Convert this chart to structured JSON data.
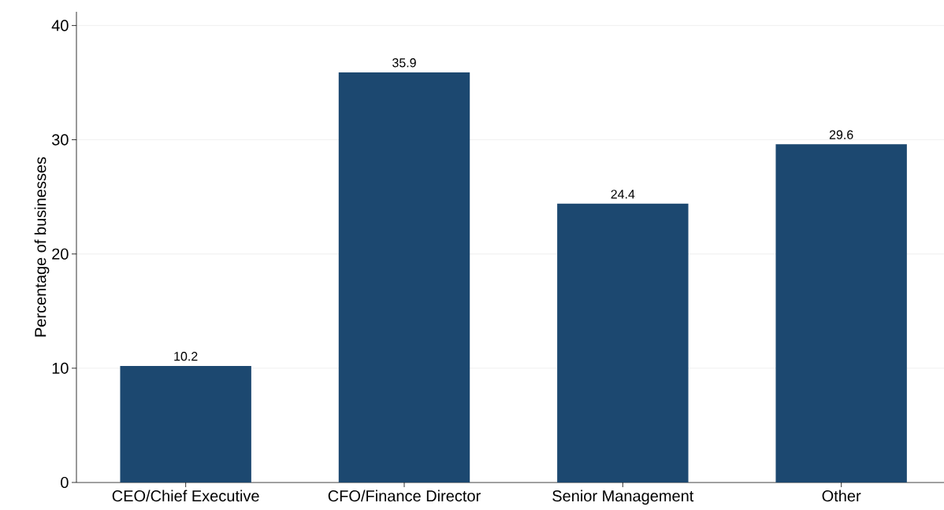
{
  "chart_data": {
    "type": "bar",
    "ylabel": "Percentage of businesses",
    "categories": [
      "CEO/Chief Executive",
      "CFO/Finance Director",
      "Senior Management",
      "Other"
    ],
    "values": [
      10.2,
      35.9,
      24.4,
      29.6
    ],
    "color": "#1c4870",
    "ylim": [
      0,
      41.2
    ],
    "yticks": [
      0,
      10,
      20,
      30,
      40
    ],
    "grid": "y",
    "data_labels": true
  }
}
